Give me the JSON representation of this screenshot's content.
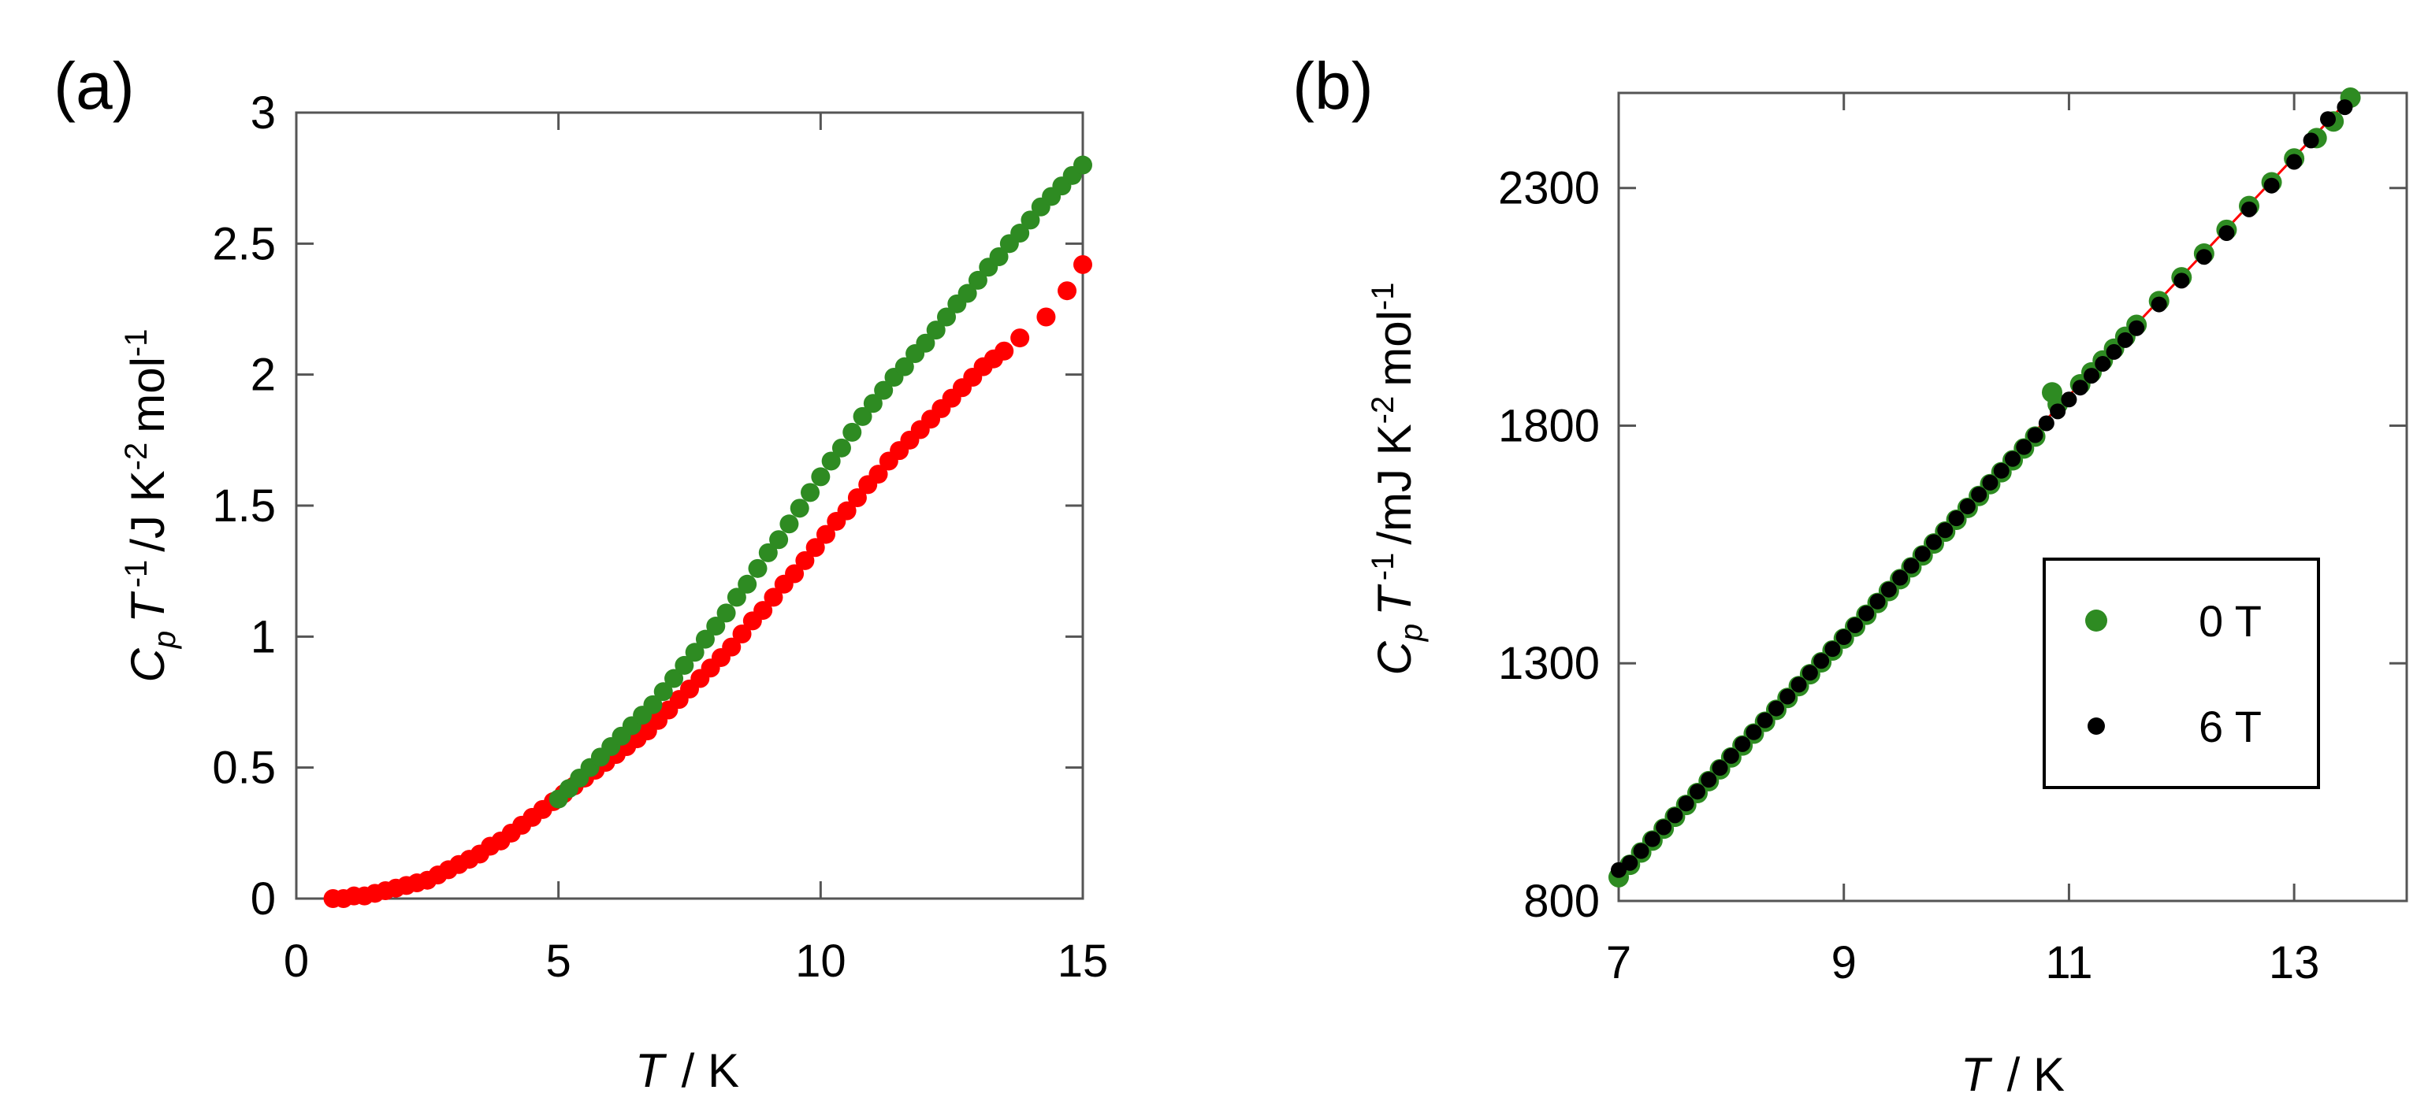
{
  "chart_data": [
    {
      "panel": "(a)",
      "type": "scatter",
      "xlabel": {
        "var": "T",
        "unit": "/ K"
      },
      "ylabel": {
        "c": "C",
        "sub": "p",
        "t": "T",
        "sup1": "-1",
        "unit": "/J K",
        "sup2": "-2",
        "mol": "mol",
        "sup3": "-1"
      },
      "xlim": [
        0,
        15
      ],
      "ylim": [
        0,
        3
      ],
      "xticks": [
        0,
        5,
        10,
        15
      ],
      "xtick_labels": [
        "0",
        "5",
        "10",
        "15"
      ],
      "yticks": [
        0,
        0.5,
        1,
        1.5,
        2,
        2.5,
        3
      ],
      "ytick_labels": [
        "0",
        "0.5",
        "1",
        "1.5",
        "2",
        "2.5",
        "3"
      ],
      "series": [
        {
          "name": "red",
          "color": "#ff0000",
          "marker": "circle",
          "x": [
            0.7,
            0.9,
            1.1,
            1.3,
            1.5,
            1.7,
            1.9,
            2.1,
            2.3,
            2.5,
            2.7,
            2.9,
            3.1,
            3.3,
            3.5,
            3.7,
            3.9,
            4.1,
            4.3,
            4.5,
            4.7,
            4.9,
            5.1,
            5.3,
            5.5,
            5.7,
            5.9,
            6.1,
            6.3,
            6.5,
            6.7,
            6.9,
            7.1,
            7.3,
            7.5,
            7.7,
            7.9,
            8.1,
            8.3,
            8.5,
            8.7,
            8.9,
            9.1,
            9.3,
            9.5,
            9.7,
            9.9,
            10.1,
            10.3,
            10.5,
            10.7,
            10.9,
            11.1,
            11.3,
            11.5,
            11.7,
            11.9,
            12.1,
            12.3,
            12.5,
            12.7,
            12.9,
            13.1,
            13.3,
            13.5,
            13.8,
            14.3,
            14.7,
            15.0
          ],
          "y": [
            0.0,
            0.0,
            0.01,
            0.01,
            0.02,
            0.03,
            0.04,
            0.05,
            0.06,
            0.07,
            0.09,
            0.11,
            0.13,
            0.15,
            0.17,
            0.2,
            0.22,
            0.25,
            0.28,
            0.31,
            0.34,
            0.37,
            0.4,
            0.43,
            0.46,
            0.49,
            0.52,
            0.55,
            0.58,
            0.61,
            0.64,
            0.68,
            0.72,
            0.76,
            0.8,
            0.84,
            0.88,
            0.92,
            0.96,
            1.01,
            1.06,
            1.1,
            1.15,
            1.2,
            1.24,
            1.29,
            1.34,
            1.39,
            1.44,
            1.48,
            1.53,
            1.58,
            1.62,
            1.67,
            1.71,
            1.75,
            1.79,
            1.83,
            1.87,
            1.91,
            1.95,
            1.99,
            2.03,
            2.06,
            2.09,
            2.14,
            2.22,
            2.32,
            2.42
          ]
        },
        {
          "name": "green",
          "color": "#2e8b22",
          "marker": "circle",
          "x": [
            5.0,
            5.2,
            5.4,
            5.6,
            5.8,
            6.0,
            6.2,
            6.4,
            6.6,
            6.8,
            7.0,
            7.2,
            7.4,
            7.6,
            7.8,
            8.0,
            8.2,
            8.4,
            8.6,
            8.8,
            9.0,
            9.2,
            9.4,
            9.6,
            9.8,
            10.0,
            10.2,
            10.4,
            10.6,
            10.8,
            11.0,
            11.2,
            11.4,
            11.6,
            11.8,
            12.0,
            12.2,
            12.4,
            12.6,
            12.8,
            13.0,
            13.2,
            13.4,
            13.6,
            13.8,
            14.0,
            14.2,
            14.4,
            14.6,
            14.8,
            15.0
          ],
          "y": [
            0.38,
            0.42,
            0.46,
            0.5,
            0.54,
            0.58,
            0.62,
            0.66,
            0.7,
            0.74,
            0.79,
            0.84,
            0.89,
            0.94,
            0.99,
            1.04,
            1.09,
            1.15,
            1.2,
            1.26,
            1.32,
            1.37,
            1.43,
            1.49,
            1.55,
            1.61,
            1.67,
            1.72,
            1.78,
            1.84,
            1.89,
            1.94,
            1.99,
            2.03,
            2.08,
            2.12,
            2.17,
            2.22,
            2.27,
            2.31,
            2.36,
            2.41,
            2.45,
            2.5,
            2.54,
            2.59,
            2.64,
            2.68,
            2.72,
            2.76,
            2.8
          ]
        }
      ]
    },
    {
      "panel": "(b)",
      "type": "scatter",
      "xlabel": {
        "var": "T",
        "unit": "/ K"
      },
      "ylabel": {
        "c": "C",
        "sub": "p",
        "t": "T",
        "sup1": "-1",
        "unit": "/mJ K",
        "sup2": "-2",
        "mol": "mol",
        "sup3": "-1"
      },
      "xlim": [
        7,
        14
      ],
      "ylim": [
        800,
        2500
      ],
      "xticks": [
        7,
        9,
        11,
        13
      ],
      "xtick_labels": [
        "7",
        "9",
        "11",
        "13"
      ],
      "yticks": [
        800,
        1300,
        1800,
        2300
      ],
      "ytick_labels": [
        "800",
        "1300",
        "1800",
        "2300"
      ],
      "legend": {
        "position": "lower-right",
        "entries": [
          "0 T",
          "6 T"
        ]
      },
      "fit_line": {
        "color": "#ff0000",
        "x": [
          7.0,
          13.5
        ],
        "y": [
          860,
          2490
        ]
      },
      "series": [
        {
          "name": "0 T",
          "color": "#2e8b22",
          "marker": "circle",
          "x": [
            7.0,
            7.1,
            7.2,
            7.3,
            7.4,
            7.5,
            7.6,
            7.7,
            7.8,
            7.9,
            8.0,
            8.1,
            8.2,
            8.3,
            8.4,
            8.5,
            8.6,
            8.7,
            8.8,
            8.9,
            9.0,
            9.1,
            9.2,
            9.3,
            9.4,
            9.5,
            9.6,
            9.7,
            9.8,
            9.9,
            10.0,
            10.1,
            10.2,
            10.3,
            10.4,
            10.5,
            10.6,
            10.7,
            10.85,
            10.9,
            11.1,
            11.2,
            11.3,
            11.4,
            11.5,
            11.6,
            11.8,
            12.0,
            12.2,
            12.4,
            12.6,
            12.8,
            13.0,
            13.2,
            13.35,
            13.5
          ],
          "y": [
            850,
            876,
            902,
            927,
            952,
            977,
            1002,
            1027,
            1052,
            1077,
            1102,
            1127,
            1152,
            1177,
            1202,
            1227,
            1252,
            1277,
            1302,
            1327,
            1352,
            1377,
            1402,
            1427,
            1452,
            1477,
            1502,
            1527,
            1552,
            1577,
            1602,
            1627,
            1652,
            1677,
            1702,
            1727,
            1752,
            1777,
            1870,
            1845,
            1887,
            1912,
            1937,
            1962,
            1987,
            2012,
            2062,
            2112,
            2162,
            2212,
            2262,
            2312,
            2362,
            2405,
            2440,
            2490
          ]
        },
        {
          "name": "6 T",
          "color": "#000000",
          "marker": "circle",
          "x": [
            7.0,
            7.1,
            7.2,
            7.3,
            7.4,
            7.5,
            7.6,
            7.7,
            7.8,
            7.9,
            8.0,
            8.1,
            8.2,
            8.3,
            8.4,
            8.5,
            8.6,
            8.7,
            8.8,
            8.9,
            9.0,
            9.1,
            9.2,
            9.3,
            9.4,
            9.5,
            9.6,
            9.7,
            9.8,
            9.9,
            10.0,
            10.1,
            10.2,
            10.3,
            10.4,
            10.5,
            10.6,
            10.7,
            10.8,
            10.9,
            11.0,
            11.1,
            11.2,
            11.3,
            11.4,
            11.5,
            11.6,
            11.8,
            12.0,
            12.2,
            12.4,
            12.6,
            12.8,
            13.0,
            13.15,
            13.3,
            13.45
          ],
          "y": [
            865,
            880,
            905,
            930,
            955,
            980,
            1005,
            1030,
            1055,
            1080,
            1105,
            1130,
            1155,
            1180,
            1205,
            1230,
            1255,
            1280,
            1305,
            1330,
            1355,
            1380,
            1405,
            1430,
            1455,
            1480,
            1505,
            1530,
            1555,
            1580,
            1605,
            1630,
            1655,
            1680,
            1705,
            1730,
            1755,
            1780,
            1805,
            1830,
            1855,
            1880,
            1905,
            1930,
            1955,
            1980,
            2005,
            2055,
            2105,
            2155,
            2205,
            2255,
            2305,
            2355,
            2400,
            2445,
            2470
          ]
        }
      ]
    }
  ]
}
